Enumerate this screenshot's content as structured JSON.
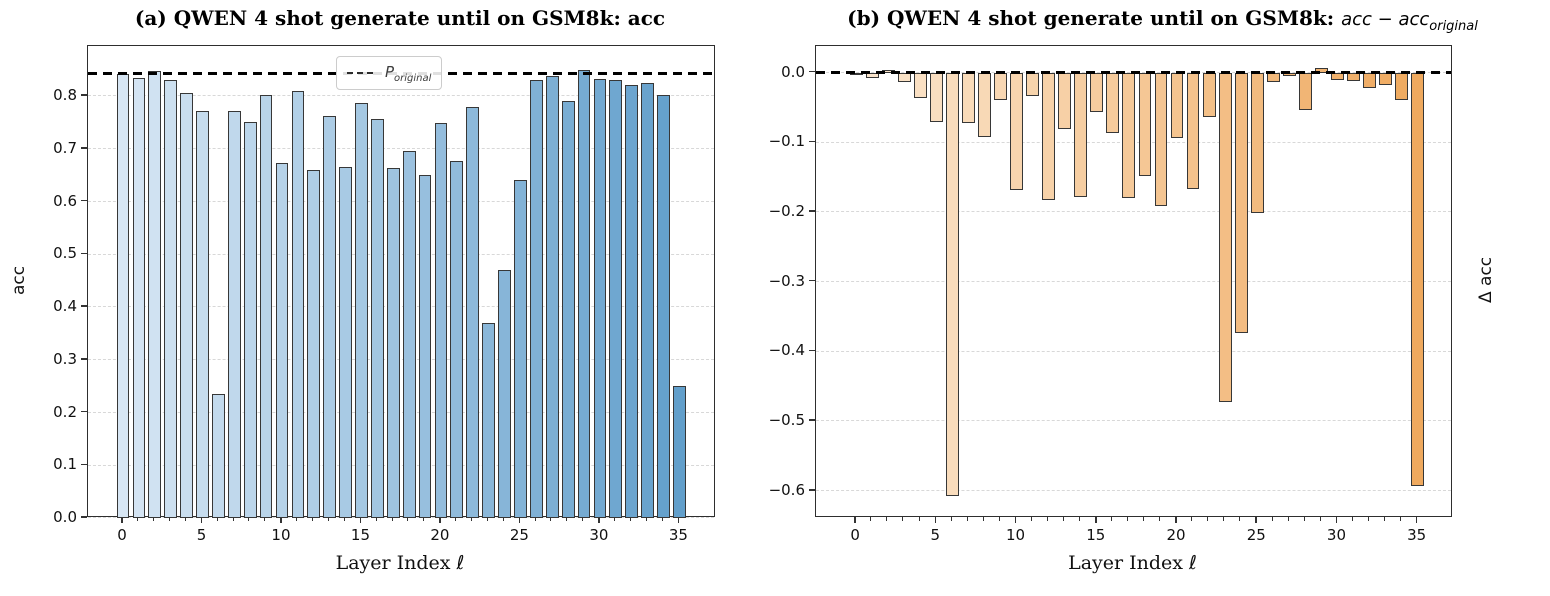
{
  "figure": {
    "background": "#ffffff"
  },
  "chart_data": [
    {
      "id": "a",
      "type": "bar",
      "title": "(a) QWEN 4 shot generate until on GSM8k: acc",
      "xlabel": "Layer Index ℓ",
      "ylabel": "acc",
      "x": [
        0,
        1,
        2,
        3,
        4,
        5,
        6,
        7,
        8,
        9,
        10,
        11,
        12,
        13,
        14,
        15,
        16,
        17,
        18,
        19,
        20,
        21,
        22,
        23,
        24,
        25,
        26,
        27,
        28,
        29,
        30,
        31,
        32,
        33,
        34,
        35
      ],
      "values": [
        0.841,
        0.835,
        0.847,
        0.83,
        0.806,
        0.772,
        0.236,
        0.771,
        0.751,
        0.803,
        0.674,
        0.81,
        0.66,
        0.762,
        0.665,
        0.786,
        0.757,
        0.663,
        0.695,
        0.651,
        0.749,
        0.676,
        0.78,
        0.37,
        0.47,
        0.641,
        0.83,
        0.838,
        0.79,
        0.849,
        0.833,
        0.831,
        0.821,
        0.825,
        0.803,
        0.25
      ],
      "ylim": [
        0,
        0.895
      ],
      "xlim": [
        -2.2,
        37.3
      ],
      "yticks": [
        0.0,
        0.1,
        0.2,
        0.3,
        0.4,
        0.5,
        0.6,
        0.7,
        0.8
      ],
      "xticks": [
        0,
        5,
        10,
        15,
        20,
        25,
        30,
        35
      ],
      "grid": true,
      "hline": {
        "value": 0.843
      },
      "legend": {
        "main": "P",
        "sub": "original",
        "position": "upper center"
      },
      "bar_width_units": 0.8,
      "bar_color_start": "#d7e6f4",
      "bar_color_end": "#629fcb",
      "bar_edge_color": "#373737",
      "hline_color": "#000000",
      "grid_color": "#d8d8d8"
    },
    {
      "id": "b",
      "type": "bar",
      "title_prefix": "(b) QWEN 4 shot generate until on GSM8k: ",
      "title_math": "acc − acc",
      "title_math_sub": "original",
      "xlabel": "Layer Index ℓ",
      "ylabel": "Δ acc",
      "x": [
        0,
        1,
        2,
        3,
        4,
        5,
        6,
        7,
        8,
        9,
        10,
        11,
        12,
        13,
        14,
        15,
        16,
        17,
        18,
        19,
        20,
        21,
        22,
        23,
        24,
        25,
        26,
        27,
        28,
        29,
        30,
        31,
        32,
        33,
        34,
        35
      ],
      "values": [
        -0.002,
        -0.008,
        0.004,
        -0.013,
        -0.037,
        -0.071,
        -0.607,
        -0.072,
        -0.092,
        -0.04,
        -0.169,
        -0.033,
        -0.183,
        -0.081,
        -0.178,
        -0.057,
        -0.086,
        -0.18,
        -0.148,
        -0.192,
        -0.094,
        -0.167,
        -0.063,
        -0.473,
        -0.373,
        -0.202,
        -0.013,
        -0.005,
        -0.053,
        0.006,
        -0.01,
        -0.012,
        -0.022,
        -0.018,
        -0.04,
        -0.593
      ],
      "ylim": [
        -0.639,
        0.0382
      ],
      "xlim": [
        -2.5,
        37.2
      ],
      "yticks": [
        0.0,
        -0.1,
        -0.2,
        -0.3,
        -0.4,
        -0.5,
        -0.6
      ],
      "xticks": [
        0,
        5,
        10,
        15,
        20,
        25,
        30,
        35
      ],
      "grid": true,
      "hline": {
        "value": 0.0
      },
      "bar_width_units": 0.8,
      "bar_color_start": "#fbe7d0",
      "bar_color_end": "#efa95e",
      "bar_edge_color": "#373737",
      "hline_color": "#000000",
      "grid_color": "#d8d8d8"
    }
  ]
}
